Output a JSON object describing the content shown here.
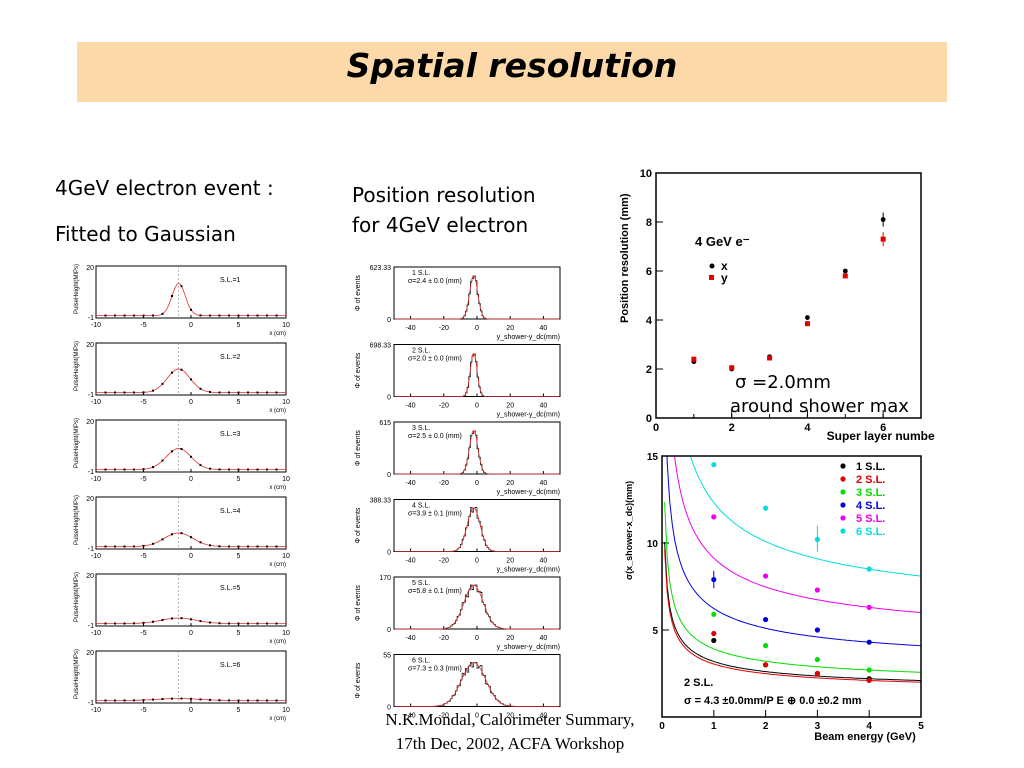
{
  "slide": {
    "title": "Spatial resolution",
    "left_caption": [
      "4GeV electron event :",
      "Fitted to Gaussian"
    ],
    "middle_caption": [
      "Position resolution",
      "for 4GeV electron"
    ],
    "sigma_note": [
      "σ =2.0mm",
      "around shower max"
    ],
    "footer": [
      "N.K.Mondal, Calorimeter Summary,",
      "17th Dec, 2002, ACFA Workshop"
    ]
  },
  "chart_data": [
    {
      "type": "scatter",
      "id": "event-profiles",
      "panels": [
        {
          "label": "S.L.=1",
          "amplitude": 13,
          "width": 0.7
        },
        {
          "label": "S.L.=2",
          "amplitude": 9.5,
          "width": 1.2
        },
        {
          "label": "S.L.=3",
          "amplitude": 8.5,
          "width": 1.3
        },
        {
          "label": "S.L.=4",
          "amplitude": 5.5,
          "width": 1.5
        },
        {
          "label": "S.L.=5",
          "amplitude": 2.2,
          "width": 1.8
        },
        {
          "label": "S.L.=6",
          "amplitude": 0.8,
          "width": 2.2
        }
      ],
      "center": -1.3,
      "xlim": [
        -10,
        10
      ],
      "ylim": [
        -1,
        20
      ],
      "xticks": [
        "-10",
        "-5",
        "0",
        "5",
        "10"
      ],
      "yticks": [
        "20",
        "-1"
      ],
      "xlabel": "x (cm)",
      "ylabel": "PulseHeight(MIPs)"
    },
    {
      "type": "bar",
      "id": "residual-histograms",
      "panels": [
        {
          "sl": "1 S.L.",
          "sigma_text": "σ=2.4 ± 0.0 (mm)",
          "ymax": "623.33",
          "sigma": 2.4
        },
        {
          "sl": "2 S.L.",
          "sigma_text": "σ=2.0 ± 0.0 (mm)",
          "ymax": "698.33",
          "sigma": 2.0
        },
        {
          "sl": "3 S.L.",
          "sigma_text": "σ=2.5 ± 0.0 (mm)",
          "ymax": "615",
          "sigma": 2.5
        },
        {
          "sl": "4 S.L.",
          "sigma_text": "σ=3.9 ± 0.1 (mm)",
          "ymax": "388.33",
          "sigma": 3.9
        },
        {
          "sl": "5 S.L.",
          "sigma_text": "σ=5.8 ± 0.1 (mm)",
          "ymax": "170",
          "sigma": 5.8
        },
        {
          "sl": "6 S.L.",
          "sigma_text": "σ=7.3 ± 0.3 (mm)",
          "ymax": "55",
          "sigma": 7.3
        }
      ],
      "center": -2,
      "xlim": [
        -50,
        50
      ],
      "xticks": [
        "-40",
        "-20",
        "0",
        "20",
        "40"
      ],
      "xlabel": "y_shower-y_dc(mm)",
      "ylabel": "Φ of events"
    },
    {
      "type": "scatter",
      "id": "position-resolution",
      "title": "4 GeV e⁻",
      "xlabel": "Super layer number",
      "ylabel": "Position resolution (mm)",
      "xlim": [
        0,
        7
      ],
      "ylim": [
        0,
        10
      ],
      "xticks": [
        "0",
        "2",
        "4",
        "6"
      ],
      "yticks": [
        "0",
        "2",
        "4",
        "6",
        "8",
        "10"
      ],
      "series": [
        {
          "name": "x",
          "color": "#000000",
          "x": [
            1,
            2,
            3,
            4,
            5,
            6
          ],
          "y": [
            2.3,
            2.0,
            2.5,
            4.1,
            6.0,
            8.1
          ]
        },
        {
          "name": "y",
          "color": "#e00000",
          "x": [
            1,
            2,
            3,
            4,
            5,
            6
          ],
          "y": [
            2.4,
            2.05,
            2.45,
            3.85,
            5.8,
            7.3
          ]
        }
      ]
    },
    {
      "type": "scatter",
      "id": "energy-dependence",
      "xlabel": "Beam energy (GeV)",
      "ylabel": "σ(x_shower-x_dc)(mm)",
      "xlim": [
        0,
        5
      ],
      "ylim": [
        0,
        15
      ],
      "xticks": [
        "0",
        "1",
        "2",
        "3",
        "4",
        "5"
      ],
      "yticks": [
        "5",
        "10",
        "15"
      ],
      "annotation": [
        "2 S.L.",
        "σ = 4.3 ±0.0mm/P E ⊕ 0.0 ±0.2 mm"
      ],
      "series": [
        {
          "name": "1 S.L.",
          "color": "#000000",
          "x": [
            1,
            2,
            3,
            4
          ],
          "y": [
            4.4,
            3.0,
            2.5,
            2.2
          ]
        },
        {
          "name": "2 S.L.",
          "color": "#e00000",
          "x": [
            1,
            2,
            3,
            4
          ],
          "y": [
            4.8,
            3.0,
            2.5,
            2.1
          ]
        },
        {
          "name": "3 S.L.",
          "color": "#00dd00",
          "x": [
            1,
            2,
            3,
            4
          ],
          "y": [
            5.9,
            4.1,
            3.3,
            2.7
          ]
        },
        {
          "name": "4 S.L.",
          "color": "#0000dd",
          "x": [
            1,
            2,
            3,
            4
          ],
          "y": [
            7.9,
            5.6,
            5.0,
            4.3
          ]
        },
        {
          "name": "5 S.L.",
          "color": "#ee00ee",
          "x": [
            1,
            2,
            3,
            4
          ],
          "y": [
            11.5,
            8.1,
            7.3,
            6.3
          ]
        },
        {
          "name": "6 S.L.",
          "color": "#00dddd",
          "x": [
            1,
            2,
            3,
            4
          ],
          "y": [
            14.5,
            12.0,
            10.2,
            8.5
          ]
        }
      ]
    }
  ]
}
